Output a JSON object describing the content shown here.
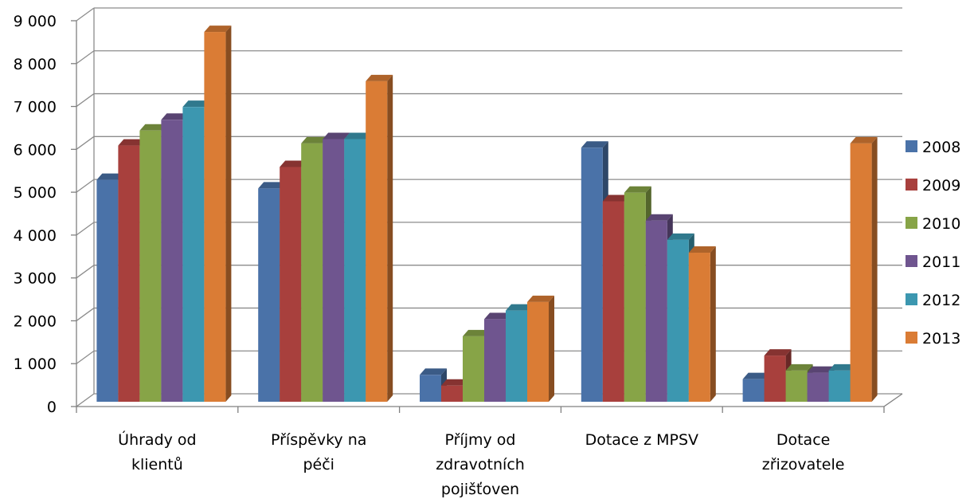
{
  "chart_data": {
    "type": "bar",
    "categories": [
      [
        "Úhrady od",
        "klientů"
      ],
      [
        "Příspěvky na",
        "péči"
      ],
      [
        "Příjmy od",
        "zdravotních",
        "pojišťoven"
      ],
      [
        "Dotace z MPSV"
      ],
      [
        "Dotace",
        "zřizovatele"
      ]
    ],
    "series": [
      {
        "name": "2008",
        "color": "#4a72a8",
        "values": [
          5400,
          5200,
          850,
          6150,
          750
        ]
      },
      {
        "name": "2009",
        "color": "#a8403d",
        "values": [
          6200,
          5700,
          600,
          4900,
          1300
        ]
      },
      {
        "name": "2010",
        "color": "#87a447",
        "values": [
          6550,
          6250,
          1750,
          5100,
          950
        ]
      },
      {
        "name": "2011",
        "color": "#6f558f",
        "values": [
          6800,
          6350,
          2150,
          4450,
          900
        ]
      },
      {
        "name": "2012",
        "color": "#3c97b0",
        "values": [
          7100,
          6350,
          2350,
          4000,
          950
        ]
      },
      {
        "name": "2013",
        "color": "#da7c35",
        "values": [
          8850,
          7700,
          2550,
          3700,
          6250
        ]
      }
    ],
    "ylim": [
      0,
      9000
    ],
    "yticks": [
      {
        "value": 0,
        "label": "0"
      },
      {
        "value": 1000,
        "label": "1 000"
      },
      {
        "value": 2000,
        "label": "2 000"
      },
      {
        "value": 3000,
        "label": "3 000"
      },
      {
        "value": 4000,
        "label": "4 000"
      },
      {
        "value": 5000,
        "label": "5 000"
      },
      {
        "value": 6000,
        "label": "6 000"
      },
      {
        "value": 7000,
        "label": "7 000"
      },
      {
        "value": 8000,
        "label": "8 000"
      },
      {
        "value": 9000,
        "label": "9 000"
      }
    ],
    "grid": true,
    "legend_position": "right",
    "title": "",
    "xlabel": "",
    "ylabel": ""
  }
}
